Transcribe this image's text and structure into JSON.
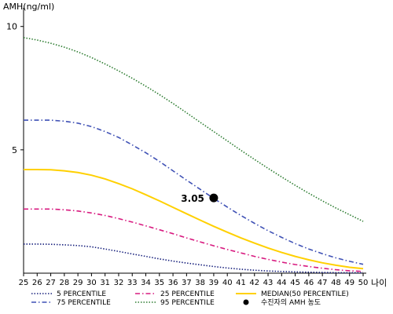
{
  "chart_data": {
    "type": "line",
    "ylabel": "AMH(ng/ml)",
    "xlabel": "나이",
    "x": [
      25,
      26,
      27,
      28,
      29,
      30,
      31,
      32,
      33,
      34,
      35,
      36,
      37,
      38,
      39,
      40,
      41,
      42,
      43,
      44,
      45,
      46,
      47,
      48,
      49,
      50
    ],
    "xlim": [
      25,
      50
    ],
    "ylim": [
      0,
      10.5
    ],
    "yticks": [
      5,
      10
    ],
    "series": [
      {
        "name": "5 PERCENTILE",
        "color": "#1a237e",
        "dash": "dot",
        "values": [
          1.18,
          1.18,
          1.17,
          1.15,
          1.12,
          1.07,
          0.98,
          0.88,
          0.78,
          0.68,
          0.58,
          0.49,
          0.41,
          0.34,
          0.27,
          0.21,
          0.16,
          0.12,
          0.09,
          0.07,
          0.05,
          0.04,
          0.03,
          0.02,
          0.02,
          0.02
        ]
      },
      {
        "name": "25 PERCENTILE",
        "color": "#d81b80",
        "dash": "dashdot",
        "values": [
          2.6,
          2.6,
          2.6,
          2.57,
          2.52,
          2.44,
          2.34,
          2.21,
          2.07,
          1.92,
          1.76,
          1.6,
          1.43,
          1.27,
          1.11,
          0.96,
          0.82,
          0.68,
          0.56,
          0.45,
          0.35,
          0.27,
          0.2,
          0.14,
          0.1,
          0.07
        ]
      },
      {
        "name": "MEDIAN(50 PERCENTILE)",
        "color": "#ffd000",
        "dash": "solid",
        "values": [
          4.2,
          4.2,
          4.19,
          4.15,
          4.08,
          3.97,
          3.82,
          3.63,
          3.42,
          3.18,
          2.93,
          2.67,
          2.41,
          2.15,
          1.9,
          1.66,
          1.43,
          1.22,
          1.02,
          0.84,
          0.68,
          0.54,
          0.42,
          0.32,
          0.24,
          0.18
        ]
      },
      {
        "name": "75 PERCENTILE",
        "color": "#3f51b5",
        "dash": "dashdot",
        "values": [
          6.2,
          6.2,
          6.2,
          6.16,
          6.08,
          5.94,
          5.74,
          5.5,
          5.2,
          4.88,
          4.53,
          4.15,
          3.77,
          3.4,
          3.03,
          2.68,
          2.34,
          2.02,
          1.72,
          1.45,
          1.2,
          0.98,
          0.79,
          0.62,
          0.48,
          0.36
        ]
      },
      {
        "name": "95 PERCENTILE",
        "color": "#2e7d32",
        "dash": "dot",
        "values": [
          9.55,
          9.45,
          9.32,
          9.16,
          8.97,
          8.74,
          8.48,
          8.2,
          7.9,
          7.58,
          7.24,
          6.88,
          6.5,
          6.12,
          5.74,
          5.36,
          4.98,
          4.61,
          4.25,
          3.9,
          3.56,
          3.24,
          2.93,
          2.64,
          2.37,
          2.1
        ]
      }
    ],
    "marker": {
      "name": "수진자의 AMH 농도",
      "x": 39,
      "y": 3.05,
      "label": "3.05"
    },
    "legend_order": [
      "5 PERCENTILE",
      "25 PERCENTILE",
      "MEDIAN(50 PERCENTILE)",
      "75 PERCENTILE",
      "95 PERCENTILE",
      "수진자의 AMH 농도"
    ],
    "legend_placement": "bottom",
    "grid": false
  }
}
